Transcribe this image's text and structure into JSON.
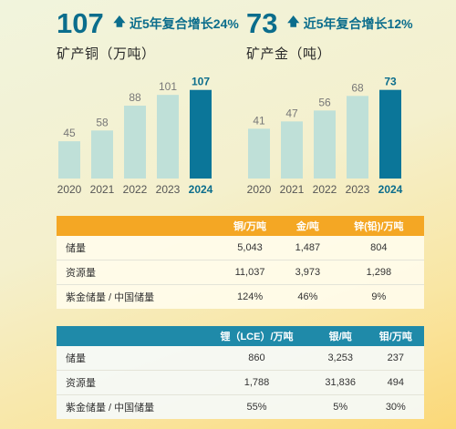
{
  "copper": {
    "value": "107",
    "growth_text": "近5年复合增长24%",
    "title": "矿产铜（万吨）"
  },
  "gold": {
    "value": "73",
    "growth_text": "近5年复合增长12%",
    "title": "矿产金（吨）"
  },
  "chart_data": [
    {
      "type": "bar",
      "title": "矿产铜（万吨）",
      "categories": [
        "2020",
        "2021",
        "2022",
        "2023",
        "2024"
      ],
      "values": [
        45,
        58,
        88,
        101,
        107
      ],
      "ylim": [
        0,
        110
      ],
      "highlight_index": 4
    },
    {
      "type": "bar",
      "title": "矿产金（吨）",
      "categories": [
        "2020",
        "2021",
        "2022",
        "2023",
        "2024"
      ],
      "values": [
        41,
        47,
        56,
        68,
        73
      ],
      "ylim": [
        0,
        75
      ],
      "highlight_index": 4
    }
  ],
  "colors": {
    "bar": "#bfe0d8",
    "bar_highlight": "#0b7699",
    "value_label": "#777777",
    "value_label_highlight": "#0b6d8c",
    "table1_header": "#f4a724",
    "table2_header": "#1f8aa9"
  },
  "table1": {
    "headers": [
      "",
      "铜/万吨",
      "金/吨",
      "锌(铅)/万吨"
    ],
    "rows": [
      [
        "储量",
        "5,043",
        "1,487",
        "804"
      ],
      [
        "资源量",
        "11,037",
        "3,973",
        "1,298"
      ],
      [
        "紫金储量 / 中国储量",
        "124%",
        "46%",
        "9%"
      ]
    ]
  },
  "table2": {
    "headers": [
      "",
      "锂（LCE）/万吨",
      "银/吨",
      "钼/万吨"
    ],
    "rows": [
      [
        "储量",
        "860",
        "3,253",
        "237"
      ],
      [
        "资源量",
        "1,788",
        "31,836",
        "494"
      ],
      [
        "紫金储量 / 中国储量",
        "55%",
        "5%",
        "30%"
      ]
    ]
  }
}
